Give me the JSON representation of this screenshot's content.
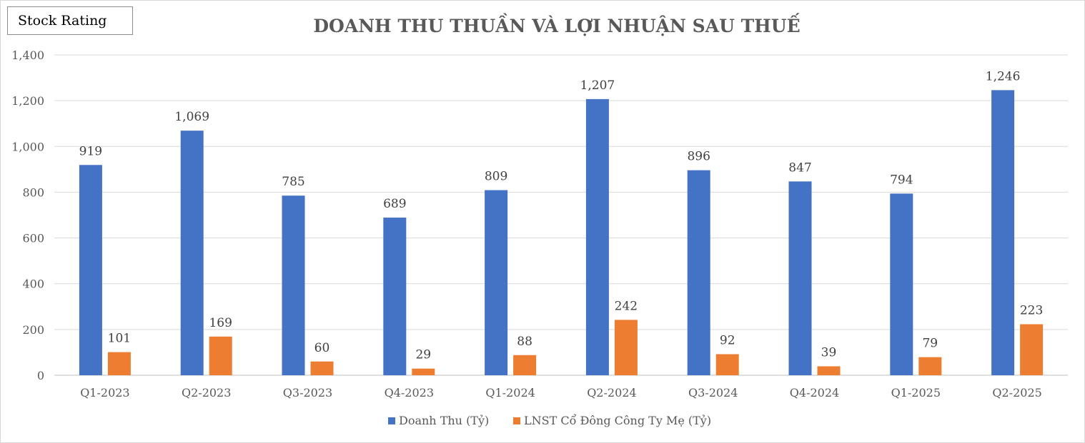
{
  "badge": {
    "label": "Stock Rating"
  },
  "chart_data": {
    "type": "bar",
    "title": "DOANH THU THUẦN VÀ LỢI NHUẬN SAU THUẾ",
    "categories": [
      "Q1-2023",
      "Q2-2023",
      "Q3-2023",
      "Q4-2023",
      "Q1-2024",
      "Q2-2024",
      "Q3-2024",
      "Q4-2024",
      "Q1-2025",
      "Q2-2025"
    ],
    "series": [
      {
        "name": "Doanh Thu (Tỷ)",
        "color": "#4472c4",
        "values": [
          919,
          1069,
          785,
          689,
          809,
          1207,
          896,
          847,
          794,
          1246
        ]
      },
      {
        "name": "LNST Cổ Đông Công Ty Mẹ (Tỷ)",
        "color": "#ed7d31",
        "values": [
          101,
          169,
          60,
          29,
          88,
          242,
          92,
          39,
          79,
          223
        ]
      }
    ],
    "ylim": [
      0,
      1400
    ],
    "yticks": [
      "0",
      "200",
      "400",
      "600",
      "800",
      "1,000",
      "1,200",
      "1,400"
    ],
    "grid": true,
    "legend_position": "bottom"
  }
}
